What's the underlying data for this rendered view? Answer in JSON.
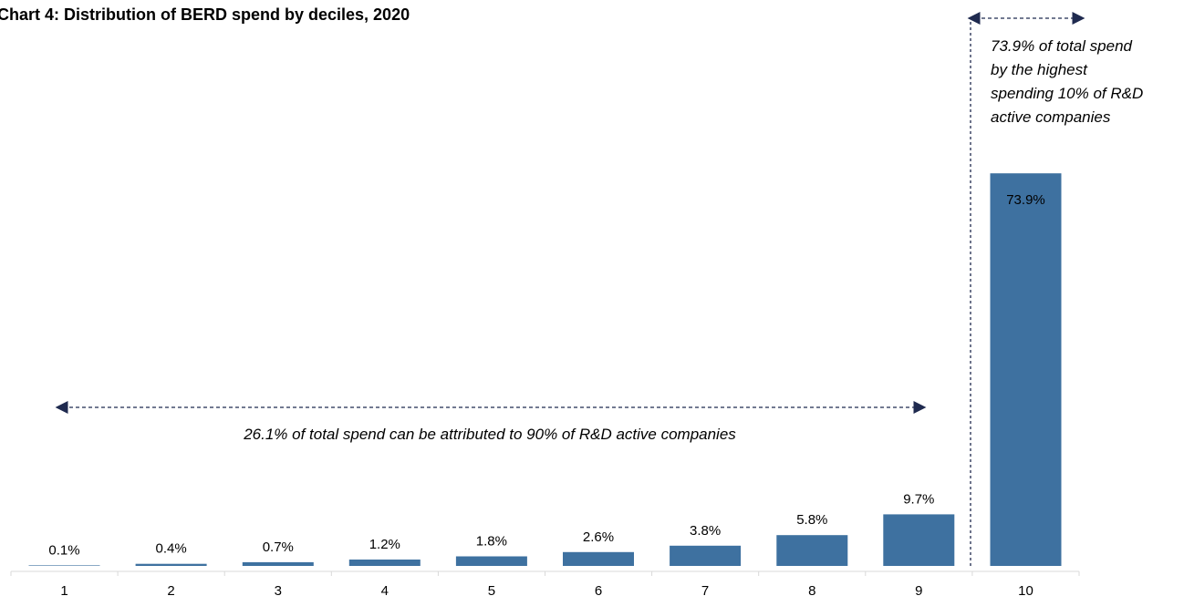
{
  "chart_data": {
    "type": "bar",
    "title": "Chart 4: Distribution of BERD spend by deciles, 2020",
    "xlabel": "",
    "ylabel": "",
    "categories": [
      "1",
      "2",
      "3",
      "4",
      "5",
      "6",
      "7",
      "8",
      "9",
      "10"
    ],
    "values": [
      0.1,
      0.4,
      0.7,
      1.2,
      1.8,
      2.6,
      3.8,
      5.8,
      9.7,
      73.9
    ],
    "data_labels": [
      "0.1%",
      "0.4%",
      "0.7%",
      "1.2%",
      "1.8%",
      "2.6%",
      "3.8%",
      "5.8%",
      "9.7%",
      "73.9%"
    ],
    "ylim": [
      0,
      100
    ],
    "grid": false,
    "colors": {
      "bar": "#3e71a0",
      "arrow": "#1f2a4f",
      "inside_label": "#ffffff"
    },
    "annotations": {
      "lower": "26.1% of total spend can be attributed to 90% of R&D active companies",
      "upper": [
        "73.9% of total spend",
        "by the highest",
        "spending 10% of R&D",
        "active companies"
      ]
    }
  }
}
